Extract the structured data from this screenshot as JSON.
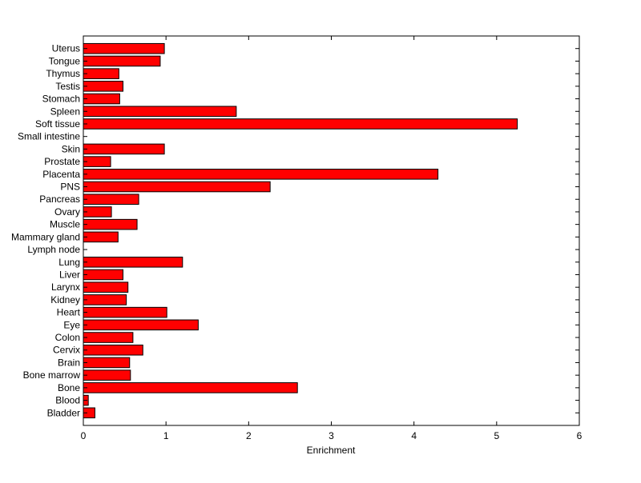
{
  "chart_data": {
    "type": "bar",
    "orientation": "horizontal",
    "categories": [
      "Bladder",
      "Blood",
      "Bone",
      "Bone marrow",
      "Brain",
      "Cervix",
      "Colon",
      "Eye",
      "Heart",
      "Kidney",
      "Larynx",
      "Liver",
      "Lung",
      "Lymph node",
      "Mammary gland",
      "Muscle",
      "Ovary",
      "Pancreas",
      "PNS",
      "Placenta",
      "Prostate",
      "Skin",
      "Small intestine",
      "Soft tissue",
      "Spleen",
      "Stomach",
      "Testis",
      "Thymus",
      "Tongue",
      "Uterus"
    ],
    "values": [
      0.14,
      0.06,
      2.59,
      0.57,
      0.56,
      0.72,
      0.6,
      1.39,
      1.01,
      0.52,
      0.54,
      0.48,
      1.2,
      0.0,
      0.42,
      0.65,
      0.34,
      0.67,
      2.26,
      4.29,
      0.33,
      0.98,
      0.0,
      5.25,
      1.85,
      0.44,
      0.48,
      0.43,
      0.93,
      0.98
    ],
    "title": "",
    "xlabel": "Enrichment",
    "ylabel": "",
    "xlim": [
      0,
      6
    ],
    "xticks": [
      "0",
      "1",
      "2",
      "3",
      "4",
      "5",
      "6"
    ],
    "grid": false,
    "legend": "none",
    "bar_color": "#ff0000",
    "edge_color": "#000000"
  }
}
